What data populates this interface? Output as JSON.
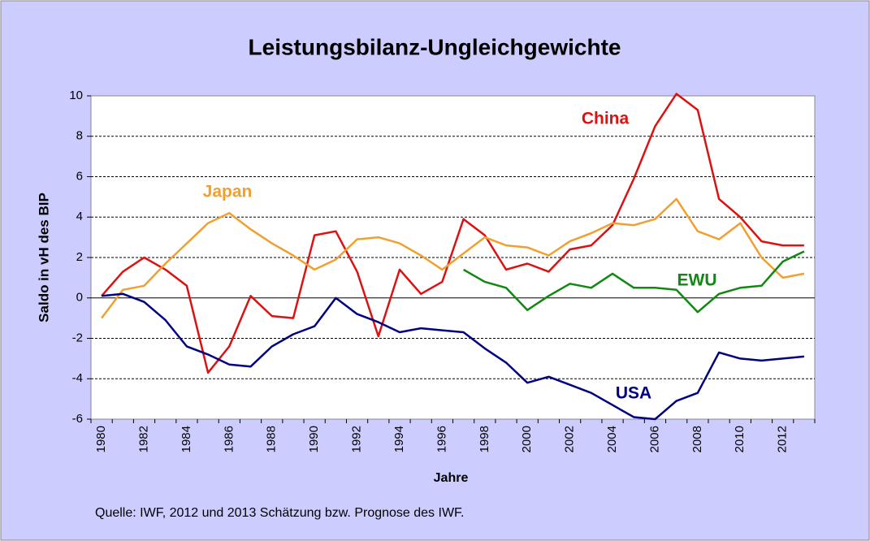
{
  "chart_data": {
    "type": "line",
    "title": "Leistungsbilanz-Ungleichgewichte",
    "xlabel": "Jahre",
    "ylabel": "Saldo in vH des BIP",
    "source": "Quelle: IWF, 2012 und 2013 Schätzung bzw. Prognose des IWF.",
    "categories": [
      "1980",
      null,
      "1982",
      null,
      "1984",
      null,
      "1986",
      null,
      "1988",
      null,
      "1990",
      null,
      "1992",
      null,
      "1994",
      null,
      "1996",
      null,
      "1998",
      null,
      "2000",
      null,
      "2002",
      null,
      "2004",
      null,
      "2006",
      null,
      "2008",
      null,
      "2010",
      null,
      "2012",
      null
    ],
    "ylim": [
      -6,
      10
    ],
    "yticks": [
      -6,
      -4,
      -2,
      0,
      2,
      4,
      6,
      8,
      10
    ],
    "grid": true,
    "series": [
      {
        "name": "China",
        "color": "#dd1111",
        "values": [
          0.1,
          1.3,
          2.0,
          1.4,
          0.6,
          -3.7,
          -2.4,
          0.1,
          -0.9,
          -1.0,
          3.1,
          3.3,
          1.3,
          -1.9,
          1.4,
          0.2,
          0.8,
          3.9,
          3.1,
          1.4,
          1.7,
          1.3,
          2.4,
          2.6,
          3.6,
          5.9,
          8.5,
          10.1,
          9.3,
          4.9,
          4.0,
          2.8,
          2.6,
          2.6
        ]
      },
      {
        "name": "Japan",
        "color": "#f0a030",
        "values": [
          -1.0,
          0.4,
          0.6,
          1.7,
          2.7,
          3.7,
          4.2,
          3.4,
          2.7,
          2.1,
          1.4,
          1.9,
          2.9,
          3.0,
          2.7,
          2.1,
          1.4,
          2.2,
          3.0,
          2.6,
          2.5,
          2.1,
          2.8,
          3.2,
          3.7,
          3.6,
          3.9,
          4.9,
          3.3,
          2.9,
          3.7,
          2.0,
          1.0,
          1.2
        ]
      },
      {
        "name": "EWU",
        "color": "#118811",
        "values": [
          null,
          null,
          null,
          null,
          null,
          null,
          null,
          null,
          null,
          null,
          null,
          null,
          null,
          null,
          null,
          null,
          null,
          1.4,
          0.8,
          0.5,
          -0.6,
          0.1,
          0.7,
          0.5,
          1.2,
          0.5,
          0.5,
          0.4,
          -0.7,
          0.2,
          0.5,
          0.6,
          1.8,
          2.3
        ]
      },
      {
        "name": "USA",
        "color": "#000080",
        "values": [
          0.1,
          0.2,
          -0.2,
          -1.1,
          -2.4,
          -2.8,
          -3.3,
          -3.4,
          -2.4,
          -1.8,
          -1.4,
          0.0,
          -0.8,
          -1.2,
          -1.7,
          -1.5,
          -1.6,
          -1.7,
          -2.5,
          -3.2,
          -4.2,
          -3.9,
          -4.3,
          -4.7,
          -5.3,
          -5.9,
          -6.0,
          -5.1,
          -4.7,
          -2.7,
          -3.0,
          -3.1,
          -3.0,
          -2.9
        ]
      }
    ]
  }
}
